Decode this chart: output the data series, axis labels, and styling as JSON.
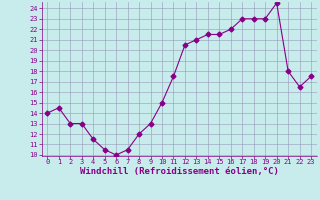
{
  "x": [
    0,
    1,
    2,
    3,
    4,
    5,
    6,
    7,
    8,
    9,
    10,
    11,
    12,
    13,
    14,
    15,
    16,
    17,
    18,
    19,
    20,
    21,
    22,
    23
  ],
  "y": [
    14,
    14.5,
    13,
    13,
    11.5,
    10.5,
    10,
    10.5,
    12,
    13,
    15,
    17.5,
    20.5,
    21,
    21.5,
    21.5,
    22,
    23,
    23,
    23,
    24.5,
    18,
    16.5,
    17.5
  ],
  "line_color": "#880088",
  "marker": "D",
  "marker_size": 2.5,
  "bg_color": "#c8ecec",
  "grid_color": "#9999bb",
  "xlabel": "Windchill (Refroidissement éolien,°C)",
  "xlabel_color": "#880088",
  "ylim": [
    10,
    24.5
  ],
  "xlim": [
    -0.5,
    23.5
  ],
  "yticks": [
    10,
    11,
    12,
    13,
    14,
    15,
    16,
    17,
    18,
    19,
    20,
    21,
    22,
    23,
    24
  ],
  "xticks": [
    0,
    1,
    2,
    3,
    4,
    5,
    6,
    7,
    8,
    9,
    10,
    11,
    12,
    13,
    14,
    15,
    16,
    17,
    18,
    19,
    20,
    21,
    22,
    23
  ],
  "tick_color": "#880088",
  "tick_fontsize": 5.0,
  "xlabel_fontsize": 6.5,
  "linewidth": 0.8
}
